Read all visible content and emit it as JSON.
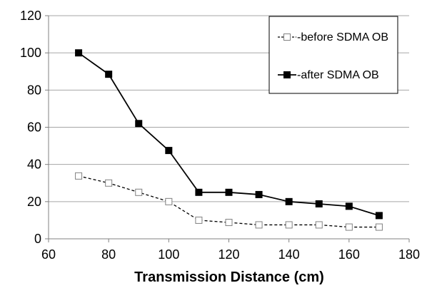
{
  "chart_data": {
    "type": "line",
    "title": "",
    "xlabel": "Transmission Distance (cm)",
    "ylabel": "",
    "xlim": [
      60,
      180
    ],
    "ylim": [
      0,
      120
    ],
    "xticks": [
      60,
      80,
      100,
      120,
      140,
      160,
      180
    ],
    "yticks": [
      0,
      20,
      40,
      60,
      80,
      100,
      120
    ],
    "x_tick_labels": [
      "60",
      "80",
      "100",
      "120",
      "140",
      "160",
      "180"
    ],
    "y_tick_labels": [
      "0",
      "20",
      "40",
      "60",
      "80",
      "100",
      "120"
    ],
    "grid": "horizontal",
    "legend_position": "top-right",
    "x": [
      70,
      80,
      90,
      100,
      110,
      120,
      130,
      140,
      150,
      160,
      170
    ],
    "series": [
      {
        "name": "before SDMA OB",
        "values": [
          33.8,
          30,
          25,
          20,
          10,
          8.8,
          7.5,
          7.5,
          7.5,
          6.3,
          6.3
        ],
        "color": "#000000",
        "line_style": "dashed",
        "marker": "hollow-square"
      },
      {
        "name": "after SDMA OB",
        "values": [
          100,
          88.5,
          62,
          47.5,
          25,
          25,
          23.8,
          20,
          18.8,
          17.5,
          12.5
        ],
        "color": "#000000",
        "line_style": "solid",
        "marker": "filled-square"
      }
    ]
  }
}
